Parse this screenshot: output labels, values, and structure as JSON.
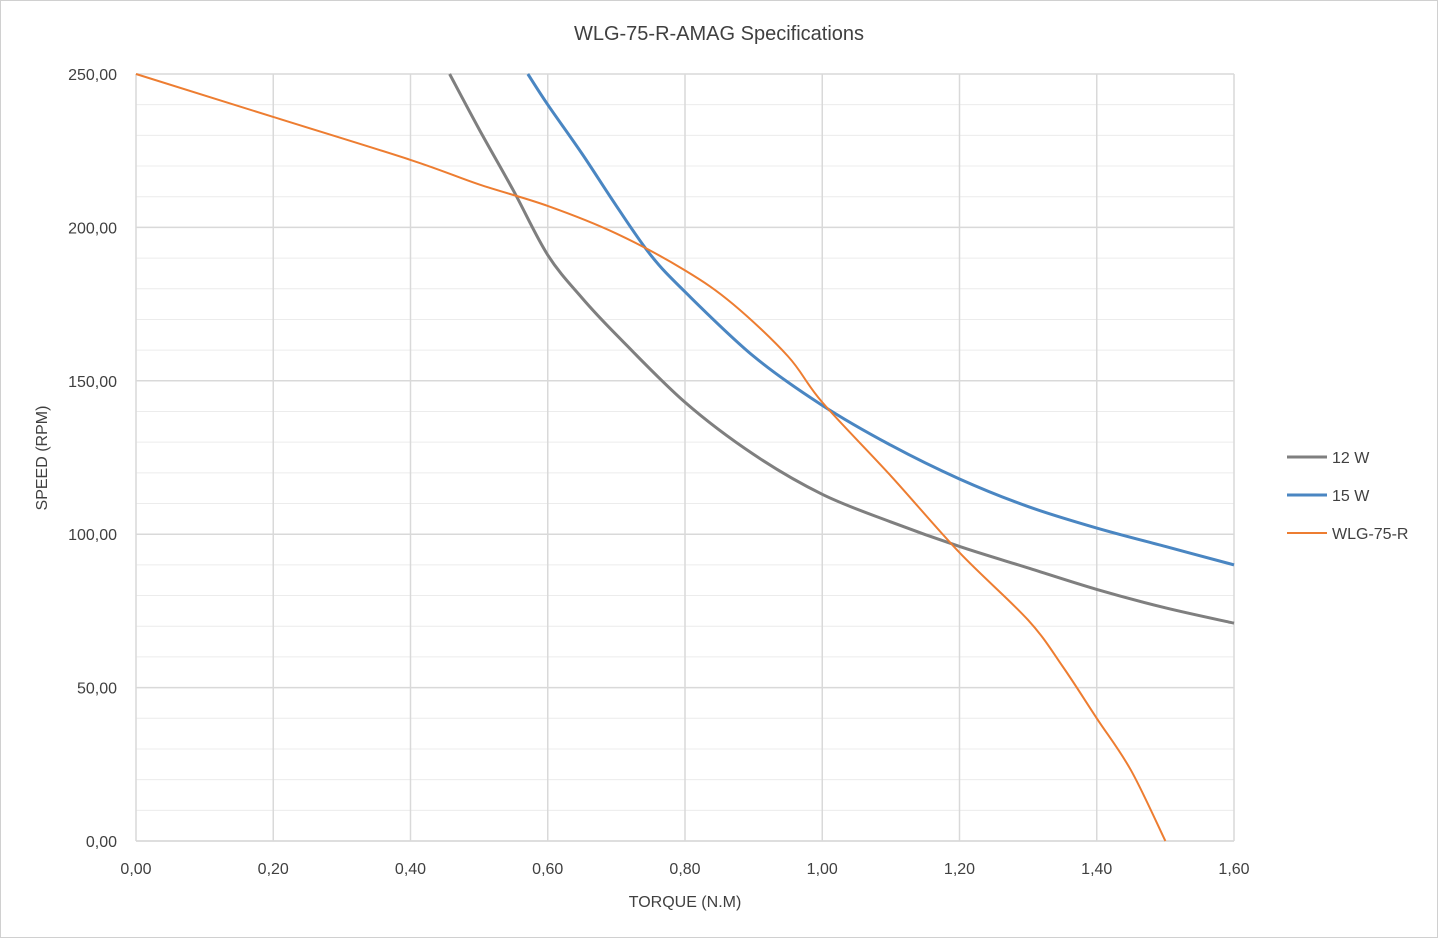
{
  "chart_data": {
    "type": "line",
    "title": "WLG-75-R-AMAG Specifications",
    "xlabel": "TORQUE (N.M)",
    "ylabel": "SPEED (RPM)",
    "xlim": [
      0,
      1.6
    ],
    "ylim": [
      0,
      250
    ],
    "x_ticks": [
      "0,00",
      "0,20",
      "0,40",
      "0,60",
      "0,80",
      "1,00",
      "1,20",
      "1,40",
      "1,60"
    ],
    "y_ticks": [
      "0,00",
      "50,00",
      "100,00",
      "150,00",
      "200,00",
      "250,00"
    ],
    "grid": {
      "major": true,
      "minor_y": true
    },
    "legend": "right",
    "series": [
      {
        "name": "12 W",
        "color": "#7f7f7f",
        "x": [
          0.457,
          0.5,
          0.55,
          0.6,
          0.65,
          0.7,
          0.8,
          0.9,
          1.0,
          1.1,
          1.2,
          1.3,
          1.4,
          1.5,
          1.6
        ],
        "y": [
          250,
          232,
          212,
          191,
          177,
          165,
          143,
          126,
          113,
          104,
          96,
          89,
          82,
          76,
          71
        ]
      },
      {
        "name": "15 W",
        "color": "#4a86c2",
        "x": [
          0.571,
          0.6,
          0.65,
          0.7,
          0.75,
          0.8,
          0.9,
          1.0,
          1.1,
          1.2,
          1.3,
          1.4,
          1.5,
          1.6
        ],
        "y": [
          250,
          240,
          224,
          207,
          191,
          179,
          158,
          142,
          129,
          118,
          109,
          102,
          96,
          90
        ]
      },
      {
        "name": "WLG-75-R",
        "color": "#ed7d31",
        "x": [
          0,
          0.2,
          0.4,
          0.5,
          0.6,
          0.7,
          0.8,
          0.87,
          0.95,
          1.0,
          1.1,
          1.2,
          1.3,
          1.35,
          1.4,
          1.45,
          1.5
        ],
        "y": [
          250,
          236,
          222,
          214,
          207,
          198,
          186,
          175,
          158,
          143,
          119,
          94,
          72,
          57,
          40,
          23,
          0
        ]
      }
    ]
  }
}
